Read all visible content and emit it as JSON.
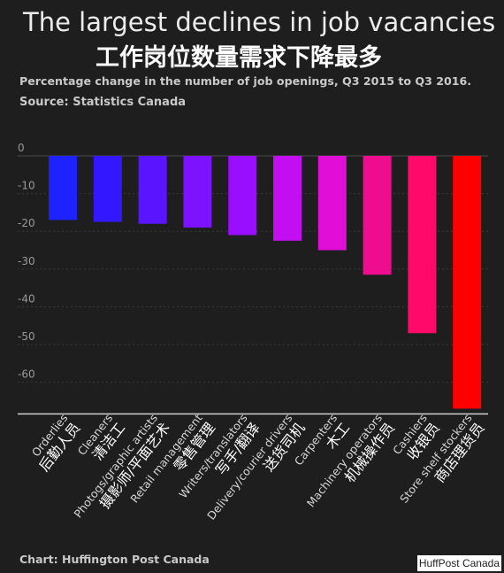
{
  "header": {
    "title_en": "The largest declines in job vacancies",
    "title_cn": "工作岗位数量需求下降最多",
    "subtitle": "Percentage change in the number of job openings, Q3 2015 to Q3 2016.",
    "source": "Source: Statistics Canada"
  },
  "footer": {
    "credit": "Chart: Huffington Post Canada",
    "watermark": "HuffPost Canada"
  },
  "chart_data": {
    "type": "bar",
    "categories": [
      "Orderlies",
      "Cleaners",
      "Photogs/graphic artists",
      "Retail management",
      "Writers/translators",
      "Delivery/courier drivers",
      "Carpenters",
      "Machinery operators",
      "Cashiers",
      "Store shelf stockers"
    ],
    "categories_cn": [
      "后勤人员",
      "清洁工",
      "摄影师/平面艺术",
      "零售管理",
      "写手/翻译",
      "送货司机",
      "木工",
      "机械操作员",
      "收银员",
      "商店理货员"
    ],
    "values": [
      -17,
      -17.5,
      -18,
      -19,
      -21,
      -22.5,
      -25,
      -31.5,
      -47,
      -67
    ],
    "colors": [
      "#1e22ff",
      "#3318ff",
      "#5a14ff",
      "#7c12ff",
      "#9a0eff",
      "#c20ef0",
      "#e00ed6",
      "#f00c8e",
      "#ff0a6a",
      "#ff0000"
    ],
    "yticks": [
      0,
      -10,
      -20,
      -30,
      -40,
      -50,
      -60
    ],
    "ylim": [
      -68,
      0
    ],
    "title": "",
    "xlabel": "",
    "ylabel": "",
    "grid": true,
    "legend": "none"
  }
}
